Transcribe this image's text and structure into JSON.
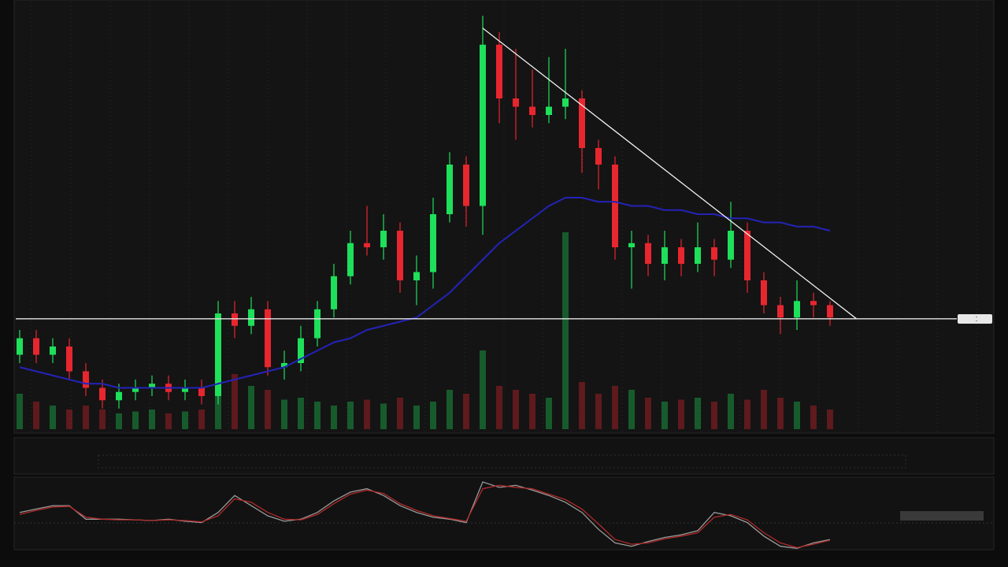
{
  "chart_data": {
    "type": "candlestick",
    "ylim": [
      0,
      100
    ],
    "up_color": "#1ee05a",
    "down_color": "#e8262f",
    "grid": true,
    "open": [
      18,
      22,
      18,
      20,
      14,
      10,
      7,
      9,
      10,
      11,
      9,
      10,
      8,
      28,
      25,
      29,
      15,
      16,
      22,
      29,
      37,
      45,
      44,
      48,
      36,
      38,
      52,
      64,
      54,
      93,
      80,
      78,
      76,
      78,
      80,
      68,
      64,
      44,
      45,
      40,
      44,
      40,
      44,
      41,
      48,
      36,
      30,
      27,
      31,
      30
    ],
    "high": [
      24,
      24,
      22,
      22,
      16,
      12,
      11,
      12,
      13,
      13,
      12,
      12,
      31,
      31,
      32,
      31,
      19,
      25,
      31,
      40,
      48,
      54,
      52,
      50,
      42,
      56,
      67,
      66,
      100,
      96,
      92,
      87,
      90,
      92,
      82,
      70,
      66,
      48,
      47,
      48,
      46,
      50,
      46,
      55,
      50,
      38,
      32,
      36,
      33,
      31
    ],
    "low": [
      16,
      16,
      16,
      12,
      8,
      5,
      5,
      7,
      8,
      7,
      7,
      6,
      6,
      22,
      23,
      13,
      12,
      14,
      20,
      27,
      35,
      42,
      41,
      33,
      30,
      34,
      50,
      49,
      47,
      74,
      70,
      73,
      74,
      75,
      62,
      58,
      41,
      34,
      37,
      36,
      37,
      38,
      37,
      39,
      33,
      28,
      23,
      24,
      27,
      25
    ],
    "close": [
      22,
      18,
      20,
      14,
      10,
      7,
      9,
      10,
      11,
      9,
      10,
      8,
      28,
      25,
      29,
      15,
      16,
      22,
      29,
      37,
      45,
      44,
      48,
      36,
      38,
      52,
      64,
      54,
      93,
      80,
      78,
      76,
      78,
      80,
      68,
      64,
      44,
      45,
      40,
      44,
      40,
      44,
      41,
      48,
      36,
      30,
      27,
      31,
      30,
      27
    ],
    "volume": {
      "vlim": [
        0,
        100
      ],
      "values": [
        18,
        14,
        12,
        10,
        12,
        10,
        8,
        9,
        10,
        8,
        9,
        10,
        30,
        28,
        22,
        20,
        15,
        16,
        14,
        12,
        14,
        15,
        13,
        16,
        12,
        14,
        20,
        18,
        40,
        22,
        20,
        18,
        16,
        100,
        24,
        18,
        22,
        20,
        16,
        14,
        15,
        16,
        14,
        18,
        15,
        20,
        16,
        14,
        12,
        10
      ]
    },
    "moving_average": {
      "color": "#2323b8",
      "values": [
        15,
        14,
        13,
        12,
        11,
        11,
        10,
        10,
        10,
        10,
        10,
        10,
        11,
        12,
        13,
        14,
        15,
        17,
        19,
        21,
        22,
        24,
        25,
        26,
        27,
        30,
        33,
        37,
        41,
        45,
        48,
        51,
        54,
        56,
        56,
        55,
        55,
        54,
        54,
        53,
        53,
        52,
        52,
        51,
        51,
        50,
        50,
        49,
        49,
        48
      ]
    },
    "hline": 26.7,
    "trendline": {
      "start": [
        28,
        97
      ],
      "end": [
        50.6,
        26.7
      ]
    },
    "oscillator": {
      "ylim": [
        0,
        100
      ],
      "series": [
        {
          "color": "#9a9a9a",
          "values": [
            55,
            60,
            65,
            65,
            45,
            45,
            45,
            44,
            43,
            45,
            42,
            40,
            55,
            80,
            65,
            50,
            42,
            45,
            55,
            72,
            85,
            90,
            80,
            65,
            55,
            48,
            45,
            40,
            100,
            92,
            95,
            88,
            80,
            70,
            55,
            30,
            10,
            5,
            12,
            18,
            22,
            28,
            55,
            50,
            40,
            20,
            5,
            2,
            10,
            15
          ]
        },
        {
          "color": "#b22a2a",
          "values": [
            52,
            58,
            63,
            64,
            48,
            45,
            44,
            44,
            43,
            44,
            43,
            41,
            50,
            75,
            70,
            55,
            45,
            44,
            52,
            68,
            82,
            88,
            83,
            68,
            58,
            50,
            46,
            42,
            90,
            95,
            92,
            90,
            82,
            74,
            60,
            38,
            15,
            8,
            10,
            16,
            20,
            25,
            48,
            52,
            44,
            25,
            10,
            3,
            8,
            14
          ]
        }
      ]
    }
  }
}
